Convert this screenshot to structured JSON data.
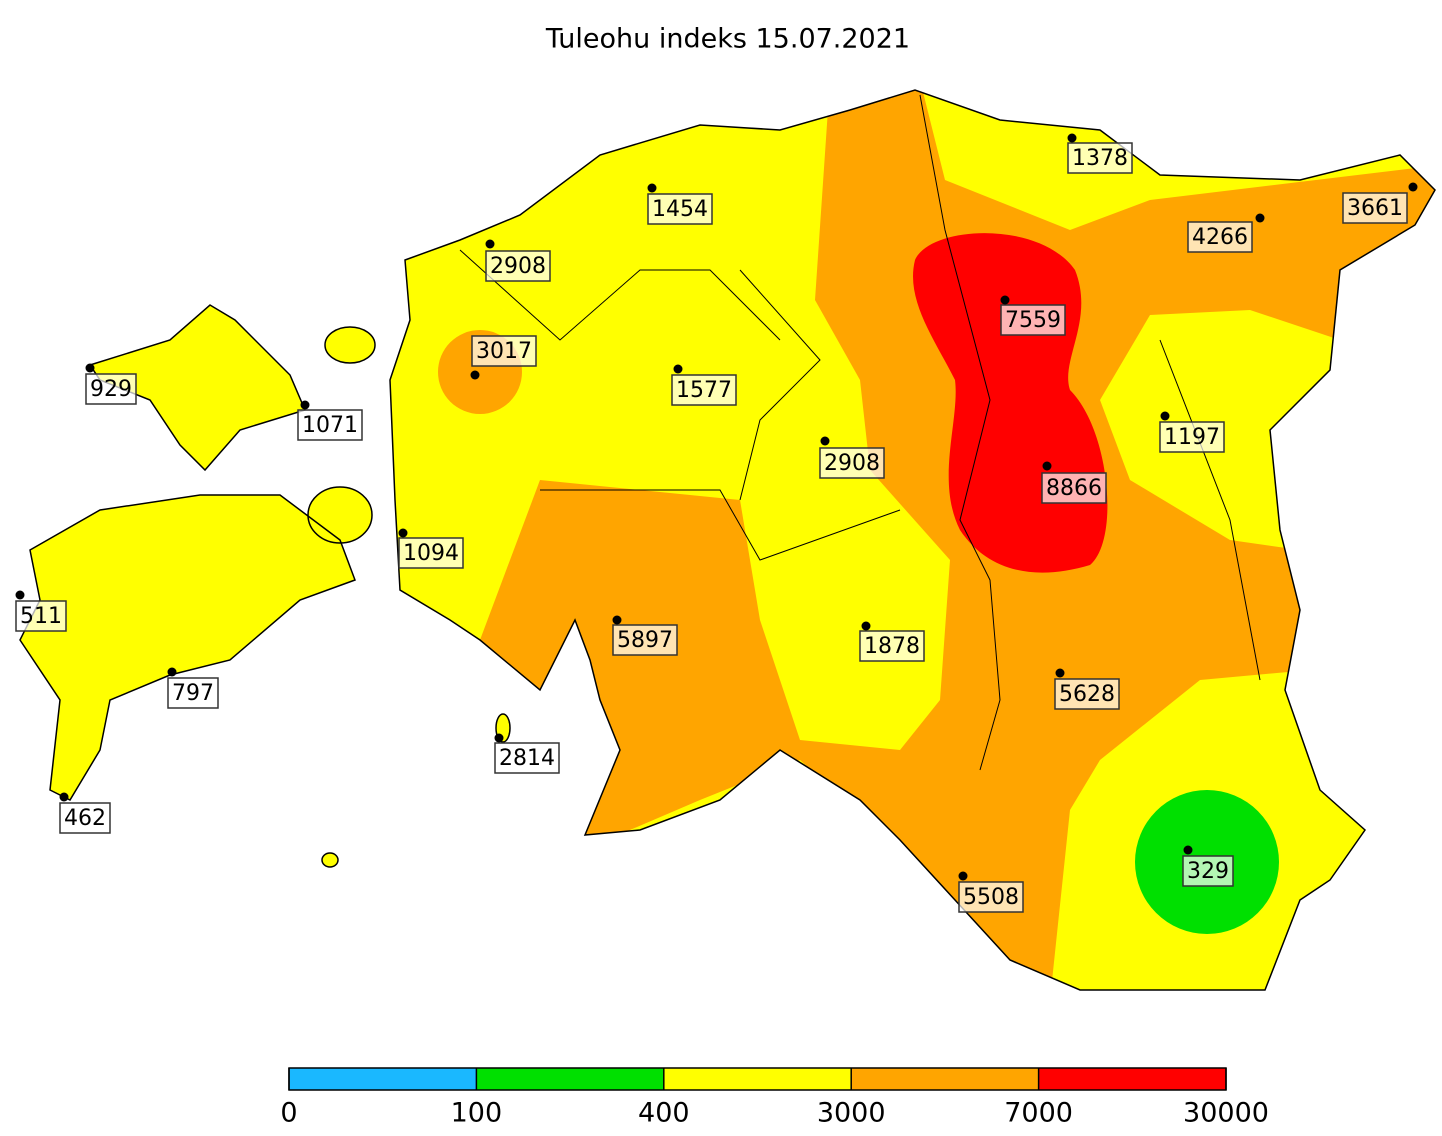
{
  "title": "Tuleohu indeks 15.07.2021",
  "stations": [
    {
      "value": 1378
    },
    {
      "value": 3661
    },
    {
      "value": 4266
    },
    {
      "value": 1454
    },
    {
      "value": 2908
    },
    {
      "value": 7559
    },
    {
      "value": 3017
    },
    {
      "value": 929
    },
    {
      "value": 1071
    },
    {
      "value": 1577
    },
    {
      "value": 2908
    },
    {
      "value": 1197
    },
    {
      "value": 8866
    },
    {
      "value": 1094
    },
    {
      "value": 511
    },
    {
      "value": 5897
    },
    {
      "value": 1878
    },
    {
      "value": 797
    },
    {
      "value": 5628
    },
    {
      "value": 2814
    },
    {
      "value": 462
    },
    {
      "value": 5508
    },
    {
      "value": 329
    }
  ],
  "colorbar": {
    "ticks": [
      0,
      100,
      400,
      3000,
      7000,
      30000
    ],
    "colors": [
      "#1ab8ff",
      "#00e000",
      "#ffff00",
      "#ffa500",
      "#ff0000"
    ]
  }
}
